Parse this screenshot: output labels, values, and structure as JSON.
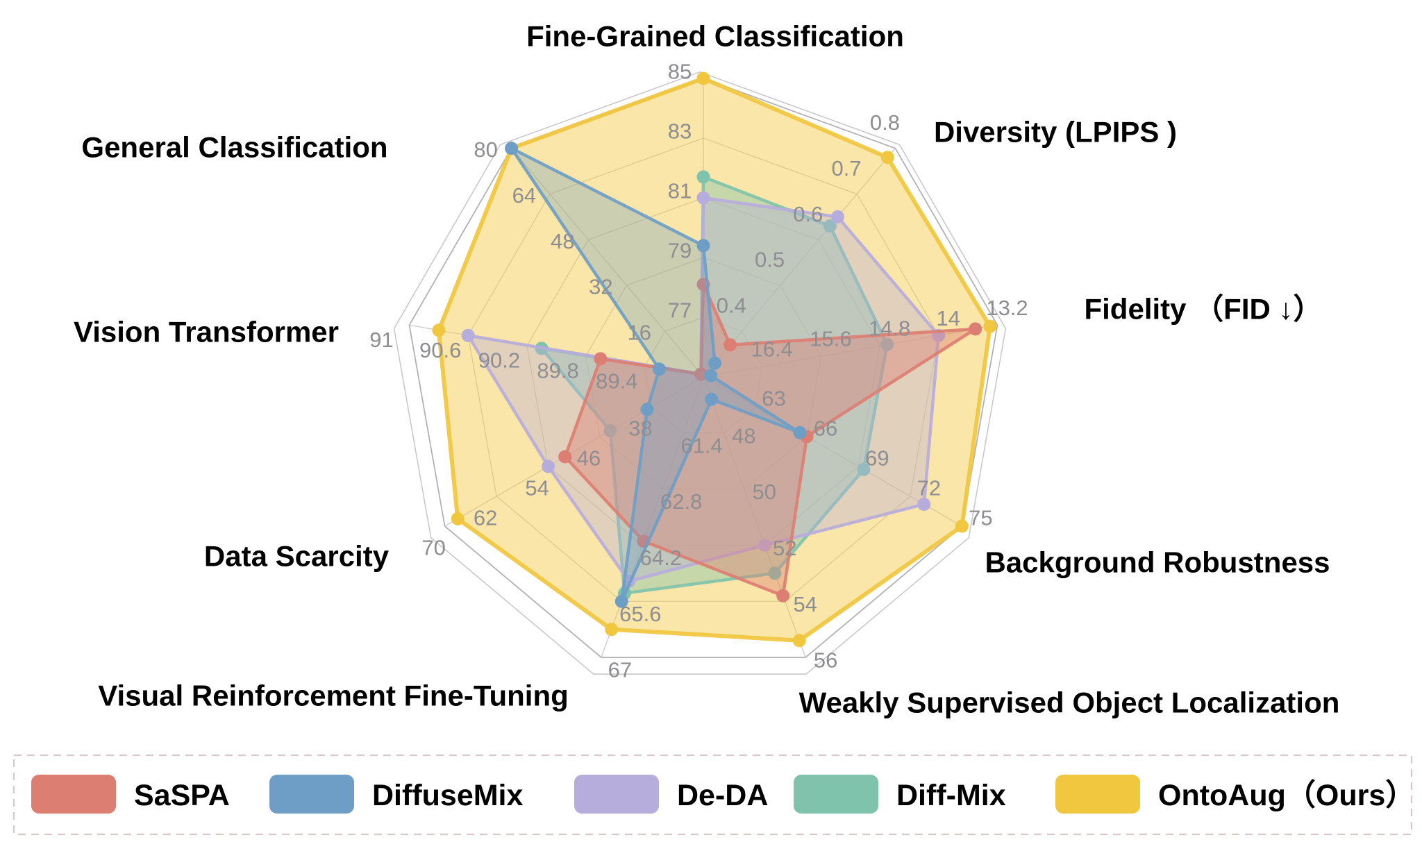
{
  "figure": {
    "type": "radar-chart-figure",
    "background": "#ffffff"
  },
  "chart_data": {
    "type": "radar",
    "title": "",
    "grid": true,
    "num_axes": 9,
    "rings_at_fractions": [
      0.2,
      0.4,
      0.6,
      0.8,
      1.0
    ],
    "legend_position": "bottom",
    "axes": [
      {
        "title": "Fine-Grained Classification",
        "min": 75,
        "max": 85,
        "tick_labels": [
          "77",
          "79",
          "81",
          "83",
          "85"
        ]
      },
      {
        "title": "Diversity (LPIPS )",
        "min": 0.3,
        "max": 0.8,
        "tick_labels": [
          "0.4",
          "0.5",
          "0.6",
          "0.7",
          "0.8"
        ]
      },
      {
        "title": "Fidelity （FID ↓）",
        "min": 17.2,
        "max": 13.2,
        "tick_labels": [
          "16.4",
          "15.6",
          "14.8",
          "14",
          "13.2"
        ],
        "inverted": true
      },
      {
        "title": "Background Robustness",
        "min": 60,
        "max": 75,
        "tick_labels": [
          "63",
          "66",
          "69",
          "72",
          "75"
        ]
      },
      {
        "title": "Weakly Supervised Object Localization",
        "min": 46,
        "max": 56,
        "tick_labels": [
          "48",
          "50",
          "52",
          "54",
          "56"
        ]
      },
      {
        "title": "Visual Reinforcement Fine-Tuning",
        "min": 60,
        "max": 67,
        "tick_labels": [
          "61.4",
          "62.8",
          "64.2",
          "65.6",
          "67"
        ]
      },
      {
        "title": "Data Scarcity",
        "min": 30,
        "max": 70,
        "tick_labels": [
          "38",
          "46",
          "54",
          "62",
          "70"
        ]
      },
      {
        "title": "Vision Transformer",
        "min": 89,
        "max": 91,
        "tick_labels": [
          "89.4",
          "89.8",
          "90.2",
          "90.6",
          "91"
        ]
      },
      {
        "title": "General Classification",
        "min": 0,
        "max": 80,
        "tick_labels": [
          "16",
          "32",
          "48",
          "64",
          "80"
        ]
      }
    ],
    "series": [
      {
        "name": "SaSPA",
        "color": "#DD7E72",
        "values": [
          78.1,
          0.37,
          13.5,
          66.0,
          53.8,
          64.1,
          51.4,
          89.7,
          1.0
        ]
      },
      {
        "name": "DiffuseMix",
        "color": "#6E9EC6",
        "values": [
          79.4,
          0.33,
          17.1,
          65.6,
          46.8,
          65.6,
          38.7,
          89.3,
          80.0
        ]
      },
      {
        "name": "De-DA",
        "color": "#B7ADDC",
        "values": [
          81.0,
          0.65,
          14.0,
          72.8,
          52.0,
          65.1,
          54.0,
          90.6,
          1.0
        ]
      },
      {
        "name": "Diff-Mix",
        "color": "#80C3AD",
        "values": [
          81.7,
          0.63,
          14.7,
          69.3,
          53.0,
          65.4,
          44.4,
          90.1,
          1.0
        ]
      },
      {
        "name": "OntoAug（Ours）",
        "color": "#F1C73F",
        "values": [
          85.0,
          0.78,
          13.3,
          75.0,
          55.4,
          66.3,
          68.0,
          90.8,
          80.0
        ]
      }
    ]
  }
}
